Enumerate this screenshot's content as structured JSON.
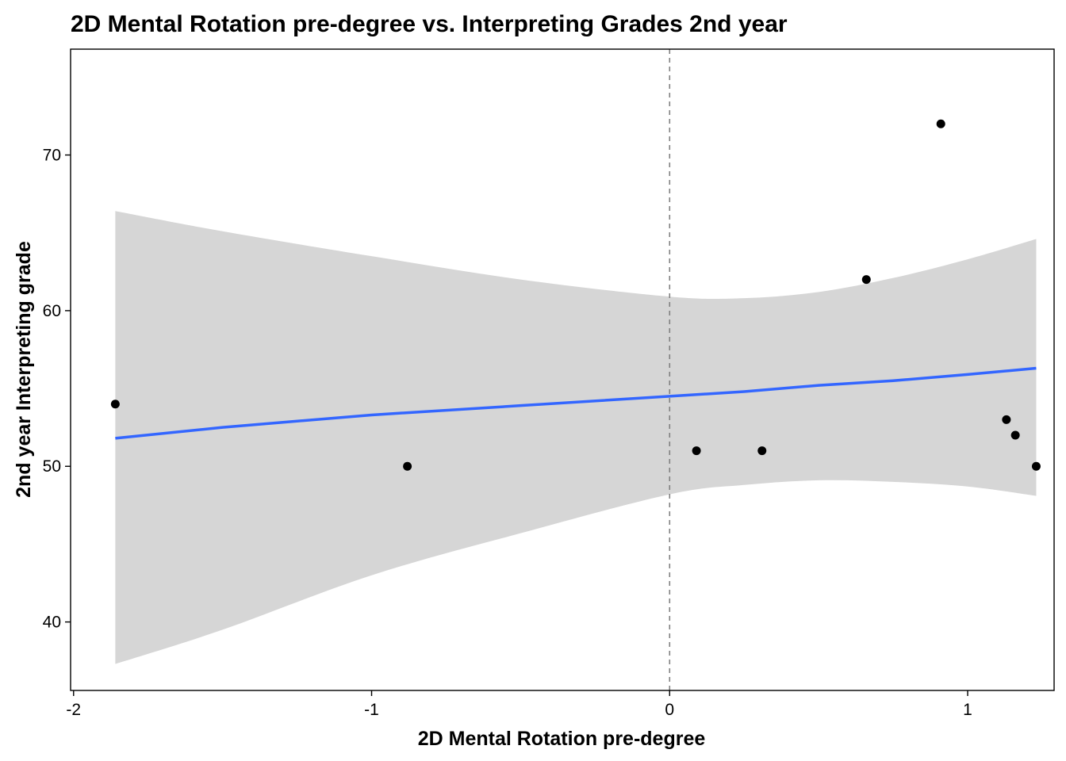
{
  "chart_data": {
    "type": "scatter",
    "title": "2D Mental Rotation pre-degree vs. Interpreting Grades 2nd year",
    "xlabel": "2D Mental Rotation pre-degree",
    "ylabel": "2nd year Interpreting grade",
    "xlim": [
      -2.01,
      1.29
    ],
    "ylim": [
      35.6,
      76.8
    ],
    "x_ticks": [
      -2,
      -1,
      0,
      1
    ],
    "x_tick_labels": [
      "-2",
      "-1",
      "0",
      "1"
    ],
    "y_ticks": [
      40,
      50,
      60,
      70
    ],
    "y_tick_labels": [
      "40",
      "50",
      "60",
      "70"
    ],
    "grid": false,
    "legend": "none",
    "reference_line": {
      "axis": "x",
      "value": 0,
      "style": "dashed",
      "color": "#808080"
    },
    "points": [
      {
        "x": -1.86,
        "y": 54
      },
      {
        "x": -0.88,
        "y": 50
      },
      {
        "x": 0.09,
        "y": 51
      },
      {
        "x": 0.31,
        "y": 51
      },
      {
        "x": 0.66,
        "y": 62
      },
      {
        "x": 0.91,
        "y": 72
      },
      {
        "x": 1.13,
        "y": 53
      },
      {
        "x": 1.16,
        "y": 52
      },
      {
        "x": 1.23,
        "y": 50
      }
    ],
    "fit": {
      "method": "linear",
      "color": "#3366FF",
      "band_color": "#D6D6D6",
      "x": [
        -1.86,
        -1.5,
        -1.0,
        -0.5,
        0.0,
        0.25,
        0.5,
        0.75,
        1.0,
        1.23
      ],
      "y": [
        51.8,
        52.5,
        53.3,
        53.9,
        54.5,
        54.8,
        55.2,
        55.5,
        55.9,
        56.3
      ],
      "lower": [
        37.3,
        39.5,
        43.0,
        45.7,
        48.2,
        48.8,
        49.1,
        49.0,
        48.7,
        48.1
      ],
      "upper": [
        66.4,
        65.1,
        63.5,
        62.0,
        60.9,
        60.8,
        61.2,
        62.1,
        63.3,
        64.6
      ]
    }
  }
}
